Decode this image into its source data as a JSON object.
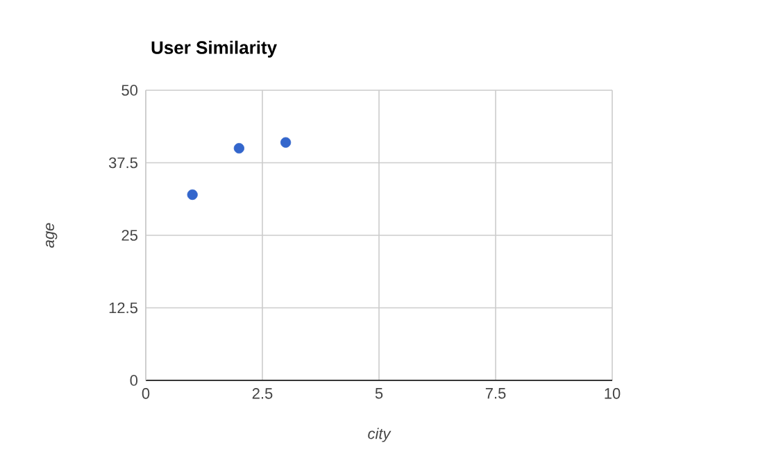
{
  "chart_data": {
    "type": "scatter",
    "title": "User Similarity",
    "xlabel": "city",
    "ylabel": "age",
    "x": [
      1,
      2,
      3
    ],
    "series": [
      {
        "color": "#3366cc",
        "values": [
          32,
          40,
          41
        ]
      }
    ],
    "xlim": [
      0,
      10
    ],
    "xticks": [
      0,
      2.5,
      5,
      7.5,
      10
    ],
    "ylim": [
      0,
      50
    ],
    "yticks": [
      0,
      12.5,
      25,
      37.5,
      50
    ],
    "grid": true,
    "marker": "circle"
  }
}
